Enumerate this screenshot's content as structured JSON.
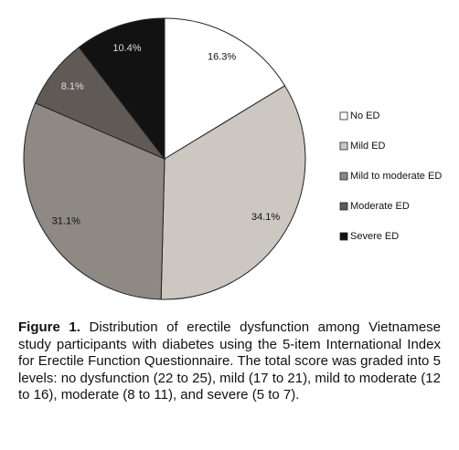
{
  "chart_data": {
    "type": "pie",
    "categories": [
      "No ED",
      "Mild ED",
      "Mild to moderate ED",
      "Moderate ED",
      "Severe ED"
    ],
    "values": [
      16.3,
      34.1,
      31.1,
      8.1,
      10.4
    ],
    "value_labels": [
      "16.3%",
      "34.1%",
      "31.1%",
      "8.1%",
      "10.4%"
    ],
    "colors": [
      "#ffffff",
      "#cdc7c2",
      "#8f8984",
      "#605a56",
      "#121212"
    ],
    "caption_label": "Figure 1.",
    "caption": "Distribution of erectile dysfunction among Vietnamese study participants with diabetes using the 5-item International Index for Erectile Function Questionnaire. The total score was graded into 5 levels: no dysfunction (22 to 25), mild (17 to 21), mild to moderate (12 to 16), moderate (8 to 11), and severe (5 to 7)."
  }
}
